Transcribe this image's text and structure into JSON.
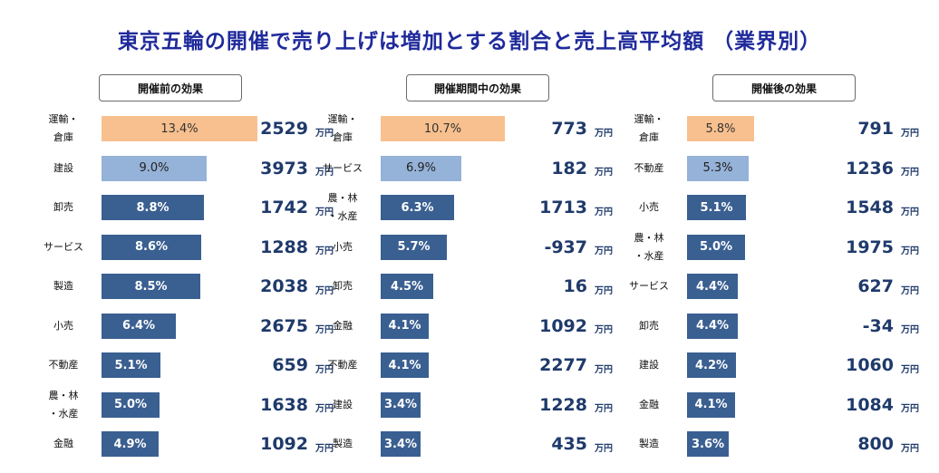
{
  "title": "東京五輪の開催で売り上げは増加とする割合と売上高平均額 （業界別）",
  "unit_label": "万円",
  "colors": {
    "first": "#f8c08e",
    "second": "#95b2d8",
    "rest": "#3a5f91",
    "title": "#1f2a9b"
  },
  "chart_data": [
    {
      "type": "bar",
      "title": "開催前の効果",
      "categories": [
        "運輸・\n倉庫",
        "建設",
        "卸売",
        "サービス",
        "製造",
        "小売",
        "不動産",
        "農・林\n・水産",
        "金融"
      ],
      "values": [
        13.4,
        9.0,
        8.8,
        8.6,
        8.5,
        6.4,
        5.1,
        5.0,
        4.9
      ],
      "value_labels": [
        "13.4%",
        "9.0%",
        "8.8%",
        "8.6%",
        "8.5%",
        "6.4%",
        "5.1%",
        "5.0%",
        "4.9%"
      ],
      "amounts": [
        "2529",
        "3973",
        "1742",
        "1288",
        "2038",
        "2675",
        "659",
        "1638",
        "1092"
      ]
    },
    {
      "type": "bar",
      "title": "開催期間中の効果",
      "categories": [
        "運輸・\n倉庫",
        "サービス",
        "農・林\n・水産",
        "小売",
        "卸売",
        "金融",
        "不動産",
        "建設",
        "製造"
      ],
      "values": [
        10.7,
        6.9,
        6.3,
        5.7,
        4.5,
        4.1,
        4.1,
        3.4,
        3.4
      ],
      "value_labels": [
        "10.7%",
        "6.9%",
        "6.3%",
        "5.7%",
        "4.5%",
        "4.1%",
        "4.1%",
        "3.4%",
        "3.4%"
      ],
      "amounts": [
        "773",
        "182",
        "1713",
        "-937",
        "16",
        "1092",
        "2277",
        "1228",
        "435"
      ]
    },
    {
      "type": "bar",
      "title": "開催後の効果",
      "categories": [
        "運輸・\n倉庫",
        "不動産",
        "小売",
        "農・林\n・水産",
        "サービス",
        "卸売",
        "建設",
        "金融",
        "製造"
      ],
      "values": [
        5.8,
        5.3,
        5.1,
        5.0,
        4.4,
        4.4,
        4.2,
        4.1,
        3.6
      ],
      "value_labels": [
        "5.8%",
        "5.3%",
        "5.1%",
        "5.0%",
        "4.4%",
        "4.4%",
        "4.2%",
        "4.1%",
        "3.6%"
      ],
      "amounts": [
        "791",
        "1236",
        "1548",
        "1975",
        "627",
        "-34",
        "1060",
        "1084",
        "800"
      ]
    }
  ]
}
